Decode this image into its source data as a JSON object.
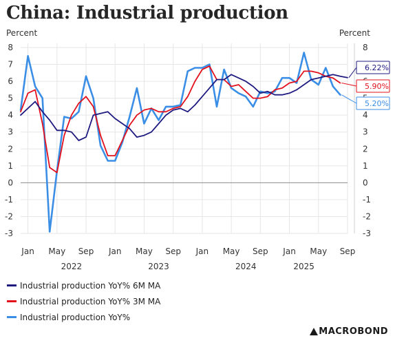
{
  "chart_data": {
    "type": "line",
    "title": "China: Industrial production",
    "unit_left": "Percent",
    "unit_right": "Percent",
    "ylim": [
      -3,
      8
    ],
    "y_ticks": [
      -3,
      -2,
      -1,
      0,
      1,
      2,
      3,
      4,
      5,
      6,
      7,
      8
    ],
    "x_start": "2021-12",
    "x_end": "2025-09",
    "month_ticks": [
      {
        "date": "2022-01",
        "label": "Jan"
      },
      {
        "date": "2022-05",
        "label": "May"
      },
      {
        "date": "2022-09",
        "label": "Sep"
      },
      {
        "date": "2023-01",
        "label": "Jan"
      },
      {
        "date": "2023-05",
        "label": "May"
      },
      {
        "date": "2023-09",
        "label": "Sep"
      },
      {
        "date": "2024-01",
        "label": "Jan"
      },
      {
        "date": "2024-05",
        "label": "May"
      },
      {
        "date": "2024-09",
        "label": "Sep"
      },
      {
        "date": "2025-01",
        "label": "Jan"
      },
      {
        "date": "2025-05",
        "label": "May"
      },
      {
        "date": "2025-09",
        "label": "Sep"
      }
    ],
    "year_labels": [
      {
        "date": "2022-07",
        "label": "2022"
      },
      {
        "date": "2023-07",
        "label": "2023"
      },
      {
        "date": "2024-07",
        "label": "2024"
      },
      {
        "date": "2025-03",
        "label": "2025"
      }
    ],
    "series": [
      {
        "name": "Industrial production YoY% 6M MA",
        "color": "#1f1a80",
        "end_label": "6.22%",
        "points": [
          [
            "2021-12",
            4.0
          ],
          [
            "2022-02",
            4.8
          ],
          [
            "2022-03",
            4.2
          ],
          [
            "2022-04",
            3.7
          ],
          [
            "2022-05",
            3.1
          ],
          [
            "2022-06",
            3.1
          ],
          [
            "2022-07",
            3.0
          ],
          [
            "2022-08",
            2.5
          ],
          [
            "2022-09",
            2.7
          ],
          [
            "2022-10",
            4.0
          ],
          [
            "2022-11",
            4.1
          ],
          [
            "2022-12",
            4.2
          ],
          [
            "2023-01",
            3.8
          ],
          [
            "2023-02",
            3.5
          ],
          [
            "2023-03",
            3.2
          ],
          [
            "2023-04",
            2.7
          ],
          [
            "2023-05",
            2.8
          ],
          [
            "2023-06",
            3.0
          ],
          [
            "2023-07",
            3.5
          ],
          [
            "2023-08",
            4.0
          ],
          [
            "2023-09",
            4.3
          ],
          [
            "2023-10",
            4.4
          ],
          [
            "2023-11",
            4.2
          ],
          [
            "2023-12",
            4.6
          ],
          [
            "2024-01",
            5.1
          ],
          [
            "2024-02",
            5.6
          ],
          [
            "2024-03",
            6.1
          ],
          [
            "2024-04",
            6.1
          ],
          [
            "2024-05",
            6.4
          ],
          [
            "2024-06",
            6.2
          ],
          [
            "2024-07",
            6.0
          ],
          [
            "2024-08",
            5.7
          ],
          [
            "2024-09",
            5.3
          ],
          [
            "2024-10",
            5.4
          ],
          [
            "2024-11",
            5.2
          ],
          [
            "2024-12",
            5.2
          ],
          [
            "2025-01",
            5.3
          ],
          [
            "2025-02",
            5.5
          ],
          [
            "2025-03",
            5.8
          ],
          [
            "2025-04",
            6.1
          ],
          [
            "2025-05",
            6.2
          ],
          [
            "2025-06",
            6.3
          ],
          [
            "2025-07",
            6.4
          ],
          [
            "2025-08",
            6.3
          ],
          [
            "2025-09",
            6.22
          ]
        ]
      },
      {
        "name": "Industrial production YoY% 3M MA",
        "color": "#e3101c",
        "end_label": "5.90%",
        "points": [
          [
            "2021-12",
            4.2
          ],
          [
            "2022-01",
            5.3
          ],
          [
            "2022-02",
            5.5
          ],
          [
            "2022-03",
            3.5
          ],
          [
            "2022-04",
            0.9
          ],
          [
            "2022-05",
            0.6
          ],
          [
            "2022-06",
            2.8
          ],
          [
            "2022-07",
            4.0
          ],
          [
            "2022-08",
            4.7
          ],
          [
            "2022-09",
            5.1
          ],
          [
            "2022-10",
            4.5
          ],
          [
            "2022-11",
            2.8
          ],
          [
            "2022-12",
            1.6
          ],
          [
            "2023-01",
            1.6
          ],
          [
            "2023-02",
            2.5
          ],
          [
            "2023-03",
            3.4
          ],
          [
            "2023-04",
            4.0
          ],
          [
            "2023-05",
            4.3
          ],
          [
            "2023-06",
            4.4
          ],
          [
            "2023-07",
            4.2
          ],
          [
            "2023-08",
            4.2
          ],
          [
            "2023-09",
            4.4
          ],
          [
            "2023-10",
            4.5
          ],
          [
            "2023-11",
            5.1
          ],
          [
            "2023-12",
            6.0
          ],
          [
            "2024-01",
            6.7
          ],
          [
            "2024-02",
            6.9
          ],
          [
            "2024-03",
            6.1
          ],
          [
            "2024-04",
            6.1
          ],
          [
            "2024-05",
            5.7
          ],
          [
            "2024-06",
            5.8
          ],
          [
            "2024-07",
            5.4
          ],
          [
            "2024-08",
            5.0
          ],
          [
            "2024-09",
            5.0
          ],
          [
            "2024-10",
            5.1
          ],
          [
            "2024-11",
            5.5
          ],
          [
            "2024-12",
            5.6
          ],
          [
            "2025-01",
            5.9
          ],
          [
            "2025-02",
            6.0
          ],
          [
            "2025-03",
            6.6
          ],
          [
            "2025-04",
            6.6
          ],
          [
            "2025-05",
            6.5
          ],
          [
            "2025-06",
            6.3
          ],
          [
            "2025-07",
            6.2
          ],
          [
            "2025-08",
            5.9
          ]
        ]
      },
      {
        "name": "Industrial production YoY%",
        "color": "#3b8ee6",
        "end_label": "5.20%",
        "points": [
          [
            "2021-12",
            4.3
          ],
          [
            "2022-01",
            7.5
          ],
          [
            "2022-02",
            5.7
          ],
          [
            "2022-03",
            5.0
          ],
          [
            "2022-04",
            -2.9
          ],
          [
            "2022-05",
            0.7
          ],
          [
            "2022-06",
            3.9
          ],
          [
            "2022-07",
            3.8
          ],
          [
            "2022-08",
            4.2
          ],
          [
            "2022-09",
            6.3
          ],
          [
            "2022-10",
            5.0
          ],
          [
            "2022-11",
            2.2
          ],
          [
            "2022-12",
            1.3
          ],
          [
            "2023-01",
            1.3
          ],
          [
            "2023-02",
            2.4
          ],
          [
            "2023-03",
            3.9
          ],
          [
            "2023-04",
            5.6
          ],
          [
            "2023-05",
            3.5
          ],
          [
            "2023-06",
            4.4
          ],
          [
            "2023-07",
            3.7
          ],
          [
            "2023-08",
            4.5
          ],
          [
            "2023-09",
            4.5
          ],
          [
            "2023-10",
            4.6
          ],
          [
            "2023-11",
            6.6
          ],
          [
            "2023-12",
            6.8
          ],
          [
            "2024-01",
            6.8
          ],
          [
            "2024-02",
            7.0
          ],
          [
            "2024-03",
            4.5
          ],
          [
            "2024-04",
            6.7
          ],
          [
            "2024-05",
            5.6
          ],
          [
            "2024-06",
            5.3
          ],
          [
            "2024-07",
            5.1
          ],
          [
            "2024-08",
            4.5
          ],
          [
            "2024-09",
            5.4
          ],
          [
            "2024-10",
            5.3
          ],
          [
            "2024-11",
            5.4
          ],
          [
            "2024-12",
            6.2
          ],
          [
            "2025-01",
            6.2
          ],
          [
            "2025-02",
            5.9
          ],
          [
            "2025-03",
            7.7
          ],
          [
            "2025-04",
            6.1
          ],
          [
            "2025-05",
            5.8
          ],
          [
            "2025-06",
            6.8
          ],
          [
            "2025-07",
            5.7
          ],
          [
            "2025-08",
            5.2
          ]
        ]
      }
    ]
  },
  "legend": [
    {
      "label": "Industrial production YoY% 6M MA",
      "color": "#1f1a80"
    },
    {
      "label": "Industrial production YoY% 3M MA",
      "color": "#e3101c"
    },
    {
      "label": "Industrial production YoY%",
      "color": "#3b8ee6"
    }
  ],
  "brand": {
    "name": "MACROBOND"
  }
}
